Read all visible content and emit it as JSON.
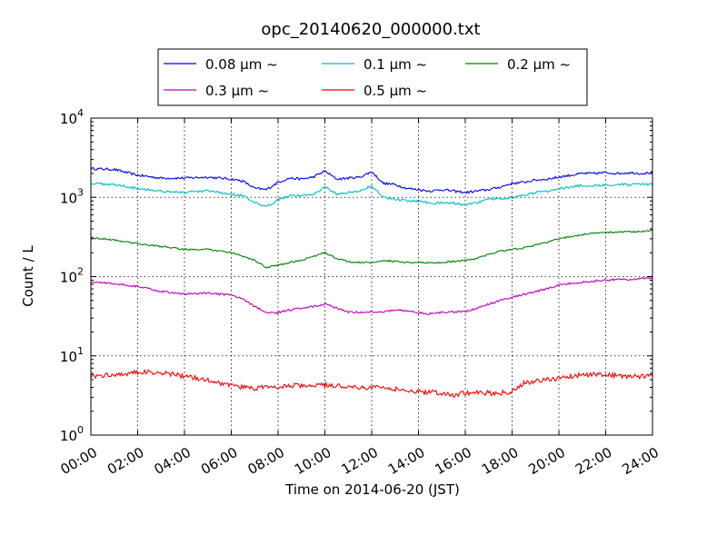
{
  "chart_data": {
    "type": "line",
    "title": "opc_20140620_000000.txt",
    "xlabel": "Time on 2014-06-20 (JST)",
    "ylabel": "Count / L",
    "yscale": "log",
    "ylim": [
      1,
      10000
    ],
    "xlim": [
      "00:00",
      "24:00"
    ],
    "x_ticks": [
      "00:00",
      "02:00",
      "04:00",
      "06:00",
      "08:00",
      "10:00",
      "12:00",
      "14:00",
      "16:00",
      "18:00",
      "20:00",
      "22:00",
      "24:00"
    ],
    "y_ticks": [
      {
        "value": 1,
        "base": "10",
        "exp": "0"
      },
      {
        "value": 10,
        "base": "10",
        "exp": "1"
      },
      {
        "value": 100,
        "base": "10",
        "exp": "2"
      },
      {
        "value": 1000,
        "base": "10",
        "exp": "3"
      },
      {
        "value": 10000,
        "base": "10",
        "exp": "4"
      }
    ],
    "grid": true,
    "legend_position": "top",
    "x_hours": [
      0,
      1,
      2,
      3,
      4,
      5,
      6,
      6.5,
      7,
      7.5,
      8,
      8.5,
      9,
      9.5,
      10,
      10.5,
      11,
      11.5,
      12,
      12.5,
      13,
      13.5,
      14,
      14.5,
      15,
      15.5,
      16,
      16.5,
      17,
      17.5,
      18,
      18.5,
      19,
      19.5,
      20,
      20.5,
      21,
      21.5,
      22,
      22.5,
      23,
      23.5,
      24
    ],
    "series": [
      {
        "name": "0.08 μm ~",
        "color": "#0000ff",
        "noise": 0.03,
        "values": [
          2300,
          2250,
          1900,
          1750,
          1750,
          1800,
          1700,
          1600,
          1300,
          1250,
          1550,
          1750,
          1700,
          1800,
          2150,
          1700,
          1750,
          1800,
          2100,
          1500,
          1450,
          1300,
          1250,
          1200,
          1250,
          1200,
          1150,
          1200,
          1250,
          1350,
          1500,
          1550,
          1650,
          1700,
          1800,
          1900,
          2000,
          2000,
          2050,
          2000,
          2050,
          2000,
          2050
        ]
      },
      {
        "name": "0.1 μm ~",
        "color": "#00bfbf",
        "noise": 0.03,
        "values": [
          1500,
          1450,
          1300,
          1200,
          1150,
          1200,
          1100,
          1050,
          850,
          750,
          950,
          1050,
          1050,
          1100,
          1350,
          1100,
          1150,
          1200,
          1400,
          1000,
          950,
          900,
          900,
          850,
          850,
          850,
          800,
          850,
          950,
          950,
          1000,
          1050,
          1150,
          1200,
          1300,
          1350,
          1400,
          1400,
          1450,
          1450,
          1450,
          1450,
          1450
        ]
      },
      {
        "name": "0.2 μm ~",
        "color": "#008000",
        "noise": 0.02,
        "values": [
          310,
          290,
          260,
          240,
          220,
          220,
          200,
          180,
          160,
          130,
          140,
          150,
          160,
          180,
          200,
          170,
          155,
          150,
          150,
          160,
          155,
          150,
          150,
          150,
          150,
          155,
          160,
          170,
          190,
          210,
          220,
          230,
          250,
          270,
          300,
          320,
          340,
          350,
          360,
          365,
          370,
          370,
          380
        ]
      },
      {
        "name": "0.3 μm ~",
        "color": "#bf00bf",
        "noise": 0.025,
        "values": [
          85,
          82,
          75,
          65,
          60,
          62,
          58,
          52,
          42,
          35,
          35,
          38,
          40,
          42,
          45,
          40,
          36,
          35,
          36,
          36,
          38,
          37,
          35,
          34,
          35,
          36,
          36,
          40,
          45,
          50,
          55,
          60,
          65,
          70,
          78,
          82,
          85,
          88,
          90,
          92,
          92,
          95,
          95
        ]
      },
      {
        "name": "0.5 μm ~",
        "color": "#ff0000",
        "noise": 0.06,
        "values": [
          5.5,
          5.8,
          6.2,
          6.2,
          5.5,
          5.0,
          4.2,
          4.0,
          3.9,
          4.0,
          4.0,
          4.2,
          4.2,
          4.2,
          4.3,
          4.2,
          4.1,
          4.0,
          4.0,
          4.0,
          3.8,
          3.6,
          3.5,
          3.5,
          3.4,
          3.2,
          3.4,
          3.4,
          3.4,
          3.4,
          3.5,
          4.5,
          4.8,
          5.0,
          5.2,
          5.5,
          5.8,
          5.8,
          5.8,
          5.6,
          5.5,
          5.5,
          5.5
        ]
      }
    ]
  }
}
